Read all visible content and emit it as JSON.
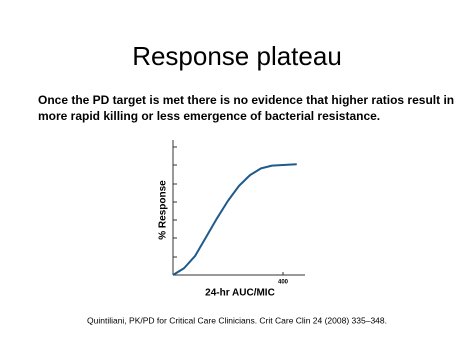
{
  "header": {
    "title": "Response plateau"
  },
  "body": {
    "lines": [
      "Once the PD target is met there is no evidence that higher ratios result in",
      "more rapid killing or less emergence of bacterial resistance."
    ]
  },
  "chart_data": {
    "type": "line",
    "x_label": "24-hr AUC/MIC",
    "y_label": "% Response",
    "x": [
      0,
      40,
      80,
      120,
      160,
      200,
      240,
      280,
      320,
      360,
      400,
      450
    ],
    "series": [
      {
        "name": "Response",
        "color": "#1f5a8c",
        "values": [
          0,
          5,
          14,
          28,
          42,
          55,
          66,
          74,
          79,
          81,
          81.5,
          82
        ]
      }
    ],
    "xlim": [
      0,
      480
    ],
    "ylim": [
      0,
      100
    ],
    "xticks": [
      400
    ]
  },
  "citation": "Quintiliani, PK/PD for Critical Care Clinicians. Crit Care Clin 24 (2008) 335–348."
}
